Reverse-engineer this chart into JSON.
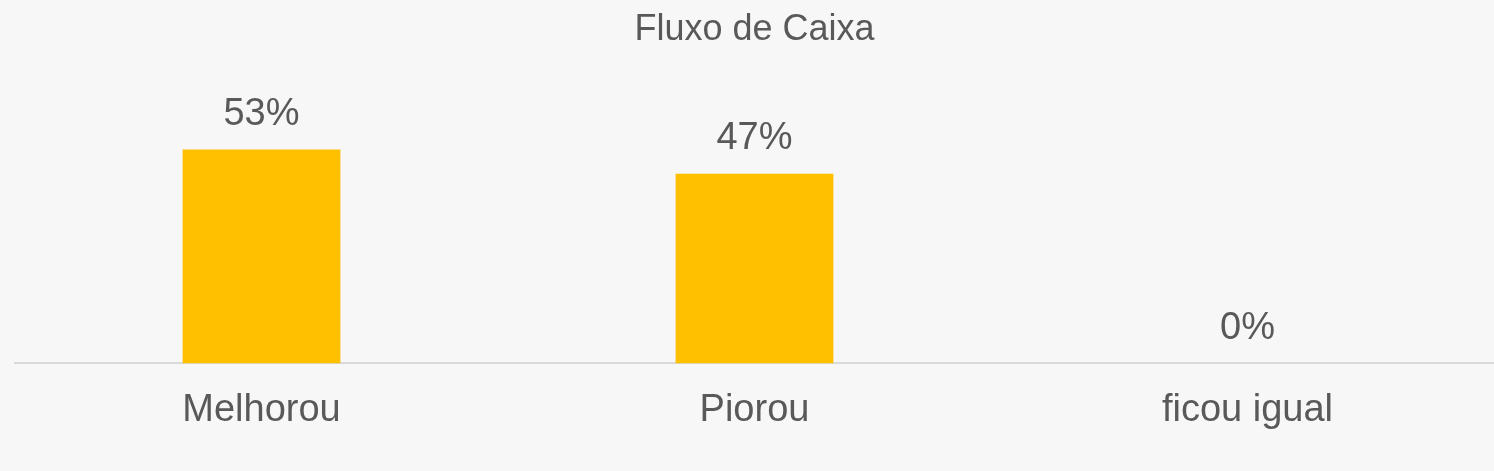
{
  "chart_data": {
    "type": "bar",
    "title": "Fluxo de Caixa",
    "categories": [
      "Melhorou",
      "Piorou",
      "ficou igual"
    ],
    "values": [
      53,
      47,
      0
    ],
    "value_labels": [
      "53%",
      "47%",
      "0%"
    ],
    "color": "#ffc000"
  }
}
